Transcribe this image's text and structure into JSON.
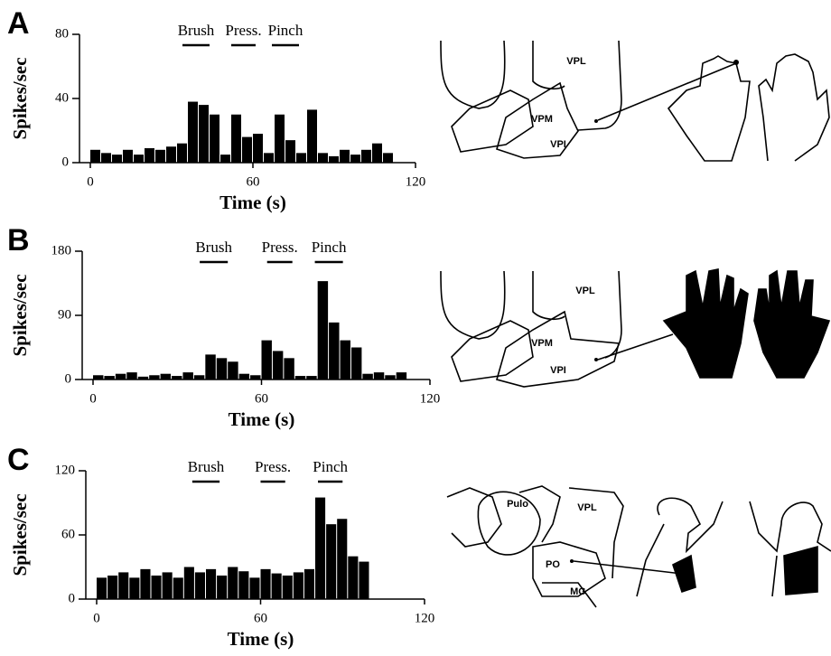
{
  "chart_data": [
    {
      "type": "histogram",
      "panel_label": "A",
      "x_label": "Time (s)",
      "y_label": "Spikes/sec",
      "bins": [
        0,
        4,
        8,
        12,
        16,
        20,
        24,
        28,
        32,
        36,
        40,
        44,
        48,
        52,
        56,
        60,
        64,
        68,
        72,
        76,
        80,
        84,
        88,
        92,
        96,
        100,
        104,
        108,
        112
      ],
      "values": [
        8,
        6,
        5,
        8,
        5,
        9,
        8,
        10,
        12,
        38,
        36,
        30,
        5,
        30,
        16,
        18,
        6,
        30,
        14,
        6,
        33,
        6,
        4,
        8,
        5,
        8,
        12,
        6
      ],
      "color": "#000000",
      "xlim": [
        0,
        120
      ],
      "xticks": [
        0,
        60,
        120
      ],
      "ylim": [
        0,
        80
      ],
      "yticks": [
        0,
        40,
        80
      ],
      "stimuli": [
        {
          "label": "Brush",
          "start": 34,
          "end": 44
        },
        {
          "label": "Press.",
          "start": 52,
          "end": 61
        },
        {
          "label": "Pinch",
          "start": 67,
          "end": 77
        }
      ],
      "region_labels": [
        "VPL",
        "VPM",
        "VPI"
      ]
    },
    {
      "type": "histogram",
      "panel_label": "B",
      "x_label": "Time (s)",
      "y_label": "Spikes/sec",
      "bins": [
        0,
        4,
        8,
        12,
        16,
        20,
        24,
        28,
        32,
        36,
        40,
        44,
        48,
        52,
        56,
        60,
        64,
        68,
        72,
        76,
        80,
        84,
        88,
        92,
        96,
        100,
        104,
        108,
        112
      ],
      "values": [
        6,
        5,
        8,
        10,
        4,
        6,
        8,
        5,
        10,
        6,
        35,
        30,
        25,
        8,
        6,
        55,
        40,
        30,
        5,
        5,
        138,
        80,
        55,
        45,
        8,
        10,
        6,
        10
      ],
      "color": "#000000",
      "xlim": [
        0,
        120
      ],
      "xticks": [
        0,
        60,
        120
      ],
      "ylim": [
        0,
        180
      ],
      "yticks": [
        0,
        90,
        180
      ],
      "stimuli": [
        {
          "label": "Brush",
          "start": 38,
          "end": 48
        },
        {
          "label": "Press.",
          "start": 62,
          "end": 71
        },
        {
          "label": "Pinch",
          "start": 79,
          "end": 89
        }
      ],
      "region_labels": [
        "VPL",
        "VPM",
        "VPI"
      ]
    },
    {
      "type": "histogram",
      "panel_label": "C",
      "x_label": "Time (s)",
      "y_label": "Spikes/sec",
      "bins": [
        0,
        4,
        8,
        12,
        16,
        20,
        24,
        28,
        32,
        36,
        40,
        44,
        48,
        52,
        56,
        60,
        64,
        68,
        72,
        76,
        80,
        84,
        88,
        92,
        96,
        100
      ],
      "values": [
        20,
        22,
        25,
        20,
        28,
        22,
        25,
        20,
        30,
        25,
        28,
        22,
        30,
        26,
        20,
        28,
        24,
        22,
        25,
        28,
        95,
        70,
        75,
        40,
        35
      ],
      "color": "#000000",
      "xlim": [
        0,
        120
      ],
      "xticks": [
        0,
        60,
        120
      ],
      "ylim": [
        0,
        120
      ],
      "yticks": [
        0,
        60,
        120
      ],
      "stimuli": [
        {
          "label": "Brush",
          "start": 35,
          "end": 45
        },
        {
          "label": "Press.",
          "start": 60,
          "end": 69
        },
        {
          "label": "Pinch",
          "start": 81,
          "end": 90
        }
      ],
      "region_labels": [
        "Pulo",
        "VPL",
        "PO",
        "MG"
      ]
    }
  ]
}
